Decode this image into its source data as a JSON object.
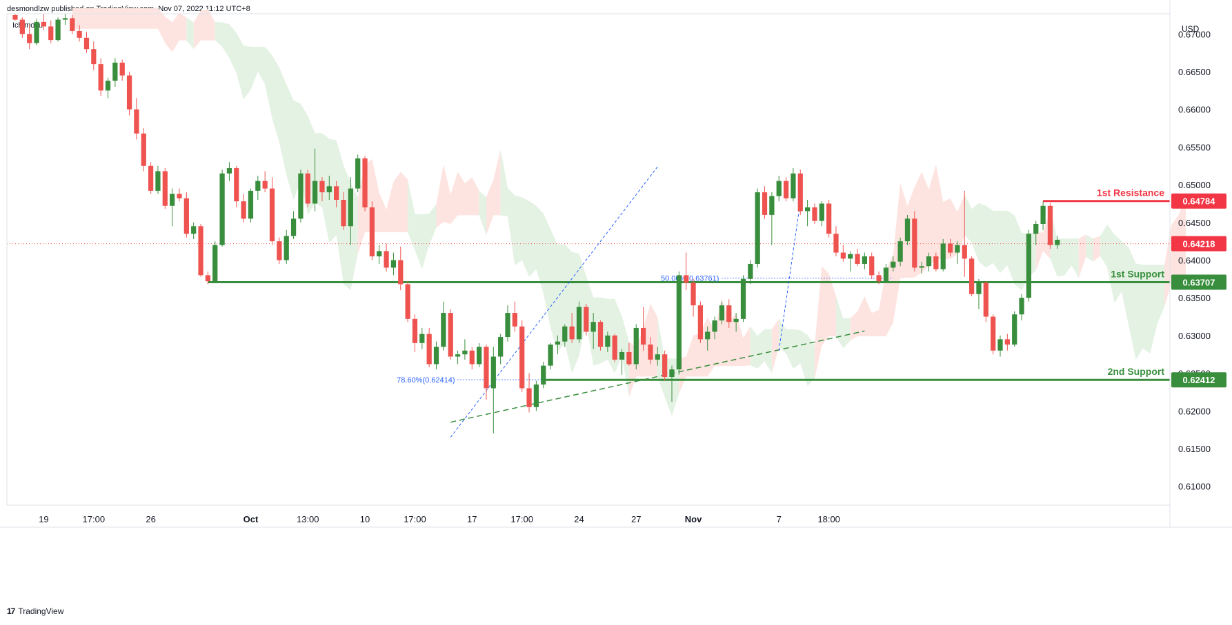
{
  "header": {
    "published_text": "desmondlzw published on TradingView.com, Nov 07, 2022 11:12 UTC+8",
    "indicator_label": "Ichimoku",
    "currency": "USD"
  },
  "footer": {
    "brand": "TradingView",
    "logo_glyph": "17"
  },
  "colors": {
    "up": "#388e3c",
    "down": "#ef5350",
    "cloud_bear": "#fde4e1",
    "cloud_bull": "#e4f2e4",
    "support": "#388e3c",
    "resistance": "#f23645",
    "fib": "#2962ff",
    "grid_text": "#131722"
  },
  "chart_data": {
    "type": "candlestick",
    "symbol_quote": "USD",
    "ylim": [
      0.6075,
      0.6725
    ],
    "y_ticks": [
      "0.67000",
      "0.66500",
      "0.66000",
      "0.65500",
      "0.65000",
      "0.64500",
      "0.64000",
      "0.63500",
      "0.63000",
      "0.62500",
      "0.62000",
      "0.61500",
      "0.61000"
    ],
    "x_ticks": [
      {
        "label": "19",
        "i": 4
      },
      {
        "label": "17:00",
        "i": 11
      },
      {
        "label": "26",
        "i": 19
      },
      {
        "label": "Oct",
        "i": 33
      },
      {
        "label": "13:00",
        "i": 41
      },
      {
        "label": "10",
        "i": 49
      },
      {
        "label": "17:00",
        "i": 56
      },
      {
        "label": "17",
        "i": 64
      },
      {
        "label": "17:00",
        "i": 71
      },
      {
        "label": "24",
        "i": 79
      },
      {
        "label": "27",
        "i": 87
      },
      {
        "label": "Nov",
        "i": 95
      },
      {
        "label": "7",
        "i": 107
      },
      {
        "label": "18:00",
        "i": 114
      }
    ],
    "candles": [
      [
        0.6725,
        0.6727,
        0.6718,
        0.6719
      ],
      [
        0.6719,
        0.6722,
        0.6695,
        0.67
      ],
      [
        0.67,
        0.6712,
        0.668,
        0.6688
      ],
      [
        0.6688,
        0.672,
        0.6685,
        0.6716
      ],
      [
        0.6716,
        0.6726,
        0.6705,
        0.671
      ],
      [
        0.671,
        0.6718,
        0.6688,
        0.6692
      ],
      [
        0.6692,
        0.6722,
        0.669,
        0.6719
      ],
      [
        0.6719,
        0.6727,
        0.6712,
        0.6721
      ],
      [
        0.6721,
        0.6725,
        0.67,
        0.6704
      ],
      [
        0.6704,
        0.6712,
        0.669,
        0.6695
      ],
      [
        0.6695,
        0.6703,
        0.6675,
        0.668
      ],
      [
        0.668,
        0.669,
        0.6652,
        0.666
      ],
      [
        0.666,
        0.6668,
        0.6618,
        0.6625
      ],
      [
        0.6625,
        0.6642,
        0.6615,
        0.6638
      ],
      [
        0.6638,
        0.6668,
        0.663,
        0.6662
      ],
      [
        0.6662,
        0.6666,
        0.6638,
        0.6645
      ],
      [
        0.6645,
        0.665,
        0.6592,
        0.66
      ],
      [
        0.66,
        0.6615,
        0.656,
        0.6568
      ],
      [
        0.6568,
        0.6575,
        0.6518,
        0.6525
      ],
      [
        0.6525,
        0.653,
        0.6488,
        0.6492
      ],
      [
        0.6492,
        0.6525,
        0.6488,
        0.6518
      ],
      [
        0.6518,
        0.6522,
        0.6468,
        0.6472
      ],
      [
        0.6472,
        0.6495,
        0.6445,
        0.6488
      ],
      [
        0.6488,
        0.6495,
        0.6478,
        0.6482
      ],
      [
        0.6482,
        0.649,
        0.643,
        0.6435
      ],
      [
        0.6435,
        0.645,
        0.6428,
        0.6445
      ],
      [
        0.6445,
        0.6448,
        0.6378,
        0.638
      ],
      [
        0.638,
        0.6385,
        0.6368,
        0.6372
      ],
      [
        0.6372,
        0.6425,
        0.637,
        0.642
      ],
      [
        0.642,
        0.652,
        0.6418,
        0.6515
      ],
      [
        0.6515,
        0.653,
        0.6505,
        0.6522
      ],
      [
        0.6522,
        0.6525,
        0.647,
        0.6478
      ],
      [
        0.6478,
        0.6488,
        0.645,
        0.6455
      ],
      [
        0.6455,
        0.6495,
        0.645,
        0.6492
      ],
      [
        0.6492,
        0.6512,
        0.648,
        0.6505
      ],
      [
        0.6505,
        0.6518,
        0.649,
        0.6495
      ],
      [
        0.6495,
        0.651,
        0.642,
        0.6425
      ],
      [
        0.6425,
        0.643,
        0.6395,
        0.64
      ],
      [
        0.64,
        0.644,
        0.6395,
        0.6432
      ],
      [
        0.6432,
        0.6465,
        0.6428,
        0.6455
      ],
      [
        0.6455,
        0.652,
        0.645,
        0.6515
      ],
      [
        0.6515,
        0.652,
        0.647,
        0.6475
      ],
      [
        0.6475,
        0.6548,
        0.6465,
        0.6505
      ],
      [
        0.6505,
        0.651,
        0.6478,
        0.649
      ],
      [
        0.649,
        0.6512,
        0.648,
        0.6498
      ],
      [
        0.6498,
        0.6505,
        0.647,
        0.648
      ],
      [
        0.648,
        0.649,
        0.644,
        0.6445
      ],
      [
        0.6445,
        0.651,
        0.642,
        0.6495
      ],
      [
        0.6495,
        0.654,
        0.649,
        0.6535
      ],
      [
        0.6535,
        0.6538,
        0.6465,
        0.647
      ],
      [
        0.647,
        0.6478,
        0.64,
        0.6405
      ],
      [
        0.6405,
        0.642,
        0.6395,
        0.6412
      ],
      [
        0.6412,
        0.6422,
        0.6385,
        0.639
      ],
      [
        0.639,
        0.641,
        0.638,
        0.64
      ],
      [
        0.64,
        0.6418,
        0.636,
        0.6368
      ],
      [
        0.6368,
        0.6372,
        0.6318,
        0.6322
      ],
      [
        0.6322,
        0.6328,
        0.6278,
        0.629
      ],
      [
        0.629,
        0.631,
        0.6282,
        0.6302
      ],
      [
        0.6302,
        0.631,
        0.6258,
        0.6262
      ],
      [
        0.6262,
        0.6292,
        0.6255,
        0.6285
      ],
      [
        0.6285,
        0.6345,
        0.628,
        0.633
      ],
      [
        0.633,
        0.6335,
        0.6268,
        0.6272
      ],
      [
        0.6272,
        0.628,
        0.6262,
        0.6275
      ],
      [
        0.6275,
        0.6295,
        0.6268,
        0.628
      ],
      [
        0.628,
        0.6285,
        0.6255,
        0.6262
      ],
      [
        0.6262,
        0.629,
        0.6258,
        0.6285
      ],
      [
        0.6285,
        0.6288,
        0.6215,
        0.623
      ],
      [
        0.623,
        0.6285,
        0.617,
        0.6272
      ],
      [
        0.6272,
        0.6302,
        0.6262,
        0.6298
      ],
      [
        0.6298,
        0.634,
        0.6292,
        0.633
      ],
      [
        0.633,
        0.6345,
        0.6305,
        0.6312
      ],
      [
        0.6312,
        0.632,
        0.6225,
        0.623
      ],
      [
        0.623,
        0.625,
        0.6198,
        0.6205
      ],
      [
        0.6205,
        0.624,
        0.62,
        0.6235
      ],
      [
        0.6235,
        0.6265,
        0.623,
        0.626
      ],
      [
        0.626,
        0.629,
        0.6255,
        0.6288
      ],
      [
        0.6288,
        0.63,
        0.6275,
        0.6292
      ],
      [
        0.6292,
        0.6315,
        0.6285,
        0.6312
      ],
      [
        0.6312,
        0.633,
        0.629,
        0.6295
      ],
      [
        0.6295,
        0.6345,
        0.629,
        0.6338
      ],
      [
        0.6338,
        0.6342,
        0.63,
        0.6305
      ],
      [
        0.6305,
        0.633,
        0.6282,
        0.6318
      ],
      [
        0.6318,
        0.632,
        0.628,
        0.6285
      ],
      [
        0.6285,
        0.6305,
        0.6278,
        0.63
      ],
      [
        0.63,
        0.6302,
        0.6265,
        0.6268
      ],
      [
        0.6268,
        0.6282,
        0.6248,
        0.6278
      ],
      [
        0.6278,
        0.629,
        0.626,
        0.6262
      ],
      [
        0.6262,
        0.6315,
        0.6255,
        0.631
      ],
      [
        0.631,
        0.6338,
        0.628,
        0.6288
      ],
      [
        0.6288,
        0.6298,
        0.6262,
        0.6268
      ],
      [
        0.6268,
        0.6285,
        0.626,
        0.6275
      ],
      [
        0.6275,
        0.628,
        0.624,
        0.6245
      ],
      [
        0.6245,
        0.626,
        0.6212,
        0.6255
      ],
      [
        0.6255,
        0.6385,
        0.6248,
        0.638
      ],
      [
        0.638,
        0.641,
        0.636,
        0.637
      ],
      [
        0.637,
        0.6375,
        0.6325,
        0.634
      ],
      [
        0.634,
        0.6345,
        0.629,
        0.6295
      ],
      [
        0.6295,
        0.6312,
        0.628,
        0.6305
      ],
      [
        0.6305,
        0.6325,
        0.6295,
        0.632
      ],
      [
        0.632,
        0.6345,
        0.6315,
        0.634
      ],
      [
        0.634,
        0.6348,
        0.631,
        0.6318
      ],
      [
        0.6318,
        0.633,
        0.6305,
        0.6322
      ],
      [
        0.6322,
        0.638,
        0.6318,
        0.6375
      ],
      [
        0.6375,
        0.64,
        0.6368,
        0.6395
      ],
      [
        0.6395,
        0.6495,
        0.639,
        0.649
      ],
      [
        0.649,
        0.6498,
        0.6455,
        0.646
      ],
      [
        0.646,
        0.649,
        0.642,
        0.6485
      ],
      [
        0.6485,
        0.6512,
        0.6478,
        0.6505
      ],
      [
        0.6505,
        0.651,
        0.6478,
        0.6482
      ],
      [
        0.6482,
        0.6522,
        0.6478,
        0.6515
      ],
      [
        0.6515,
        0.652,
        0.646,
        0.6465
      ],
      [
        0.6465,
        0.648,
        0.6445,
        0.647
      ],
      [
        0.647,
        0.6475,
        0.6448,
        0.6452
      ],
      [
        0.6452,
        0.6478,
        0.6445,
        0.6475
      ],
      [
        0.6475,
        0.648,
        0.643,
        0.6435
      ],
      [
        0.6435,
        0.6445,
        0.6405,
        0.641
      ],
      [
        0.641,
        0.642,
        0.6398,
        0.6402
      ],
      [
        0.6402,
        0.6412,
        0.6385,
        0.6408
      ],
      [
        0.6408,
        0.6415,
        0.6392,
        0.6395
      ],
      [
        0.6395,
        0.641,
        0.6388,
        0.6405
      ],
      [
        0.6405,
        0.641,
        0.6375,
        0.638
      ],
      [
        0.638,
        0.6385,
        0.6368,
        0.6372
      ],
      [
        0.6372,
        0.6395,
        0.637,
        0.639
      ],
      [
        0.639,
        0.6405,
        0.6385,
        0.6398
      ],
      [
        0.6398,
        0.643,
        0.6392,
        0.6425
      ],
      [
        0.6425,
        0.646,
        0.642,
        0.6455
      ],
      [
        0.6455,
        0.6465,
        0.6385,
        0.639
      ],
      [
        0.639,
        0.6398,
        0.6382,
        0.6392
      ],
      [
        0.6392,
        0.641,
        0.6385,
        0.6405
      ],
      [
        0.6405,
        0.641,
        0.6385,
        0.6388
      ],
      [
        0.6388,
        0.6428,
        0.6385,
        0.6422
      ],
      [
        0.6422,
        0.6428,
        0.6405,
        0.641
      ],
      [
        0.641,
        0.6425,
        0.6395,
        0.642
      ],
      [
        0.642,
        0.6492,
        0.6378,
        0.6402
      ],
      [
        0.6402,
        0.6405,
        0.6352,
        0.6355
      ],
      [
        0.6355,
        0.6375,
        0.6335,
        0.637
      ],
      [
        0.637,
        0.6372,
        0.6318,
        0.6325
      ],
      [
        0.6325,
        0.6328,
        0.6275,
        0.628
      ],
      [
        0.628,
        0.63,
        0.6272,
        0.6295
      ],
      [
        0.6295,
        0.6302,
        0.628,
        0.6288
      ],
      [
        0.6288,
        0.6332,
        0.6285,
        0.6328
      ],
      [
        0.6328,
        0.6355,
        0.632,
        0.635
      ],
      [
        0.635,
        0.644,
        0.6345,
        0.6435
      ],
      [
        0.6435,
        0.6452,
        0.642,
        0.6448
      ],
      [
        0.6448,
        0.6478,
        0.644,
        0.6472
      ],
      [
        0.6472,
        0.6476,
        0.6415,
        0.642
      ],
      [
        0.642,
        0.6432,
        0.6415,
        0.6427
      ]
    ],
    "levels": [
      {
        "name": "1st Resistance",
        "value": 0.64784,
        "label": "0.64784",
        "kind": "resistance"
      },
      {
        "name": "last-price",
        "value": 0.64218,
        "label": "0.64218",
        "kind": "price"
      },
      {
        "name": "1st Support",
        "value": 0.63707,
        "label": "0.63707",
        "kind": "support"
      },
      {
        "name": "2nd Support",
        "value": 0.62412,
        "label": "0.62412",
        "kind": "support"
      }
    ],
    "annotations": [
      {
        "text": "1st Resistance",
        "kind": "resistance"
      },
      {
        "text": "1st Support",
        "kind": "support"
      },
      {
        "text": "2nd Support",
        "kind": "support"
      },
      {
        "text": "78.60%(0.62414)",
        "kind": "fib"
      },
      {
        "text": "50.00%(0.63761)",
        "kind": "fib"
      }
    ]
  }
}
